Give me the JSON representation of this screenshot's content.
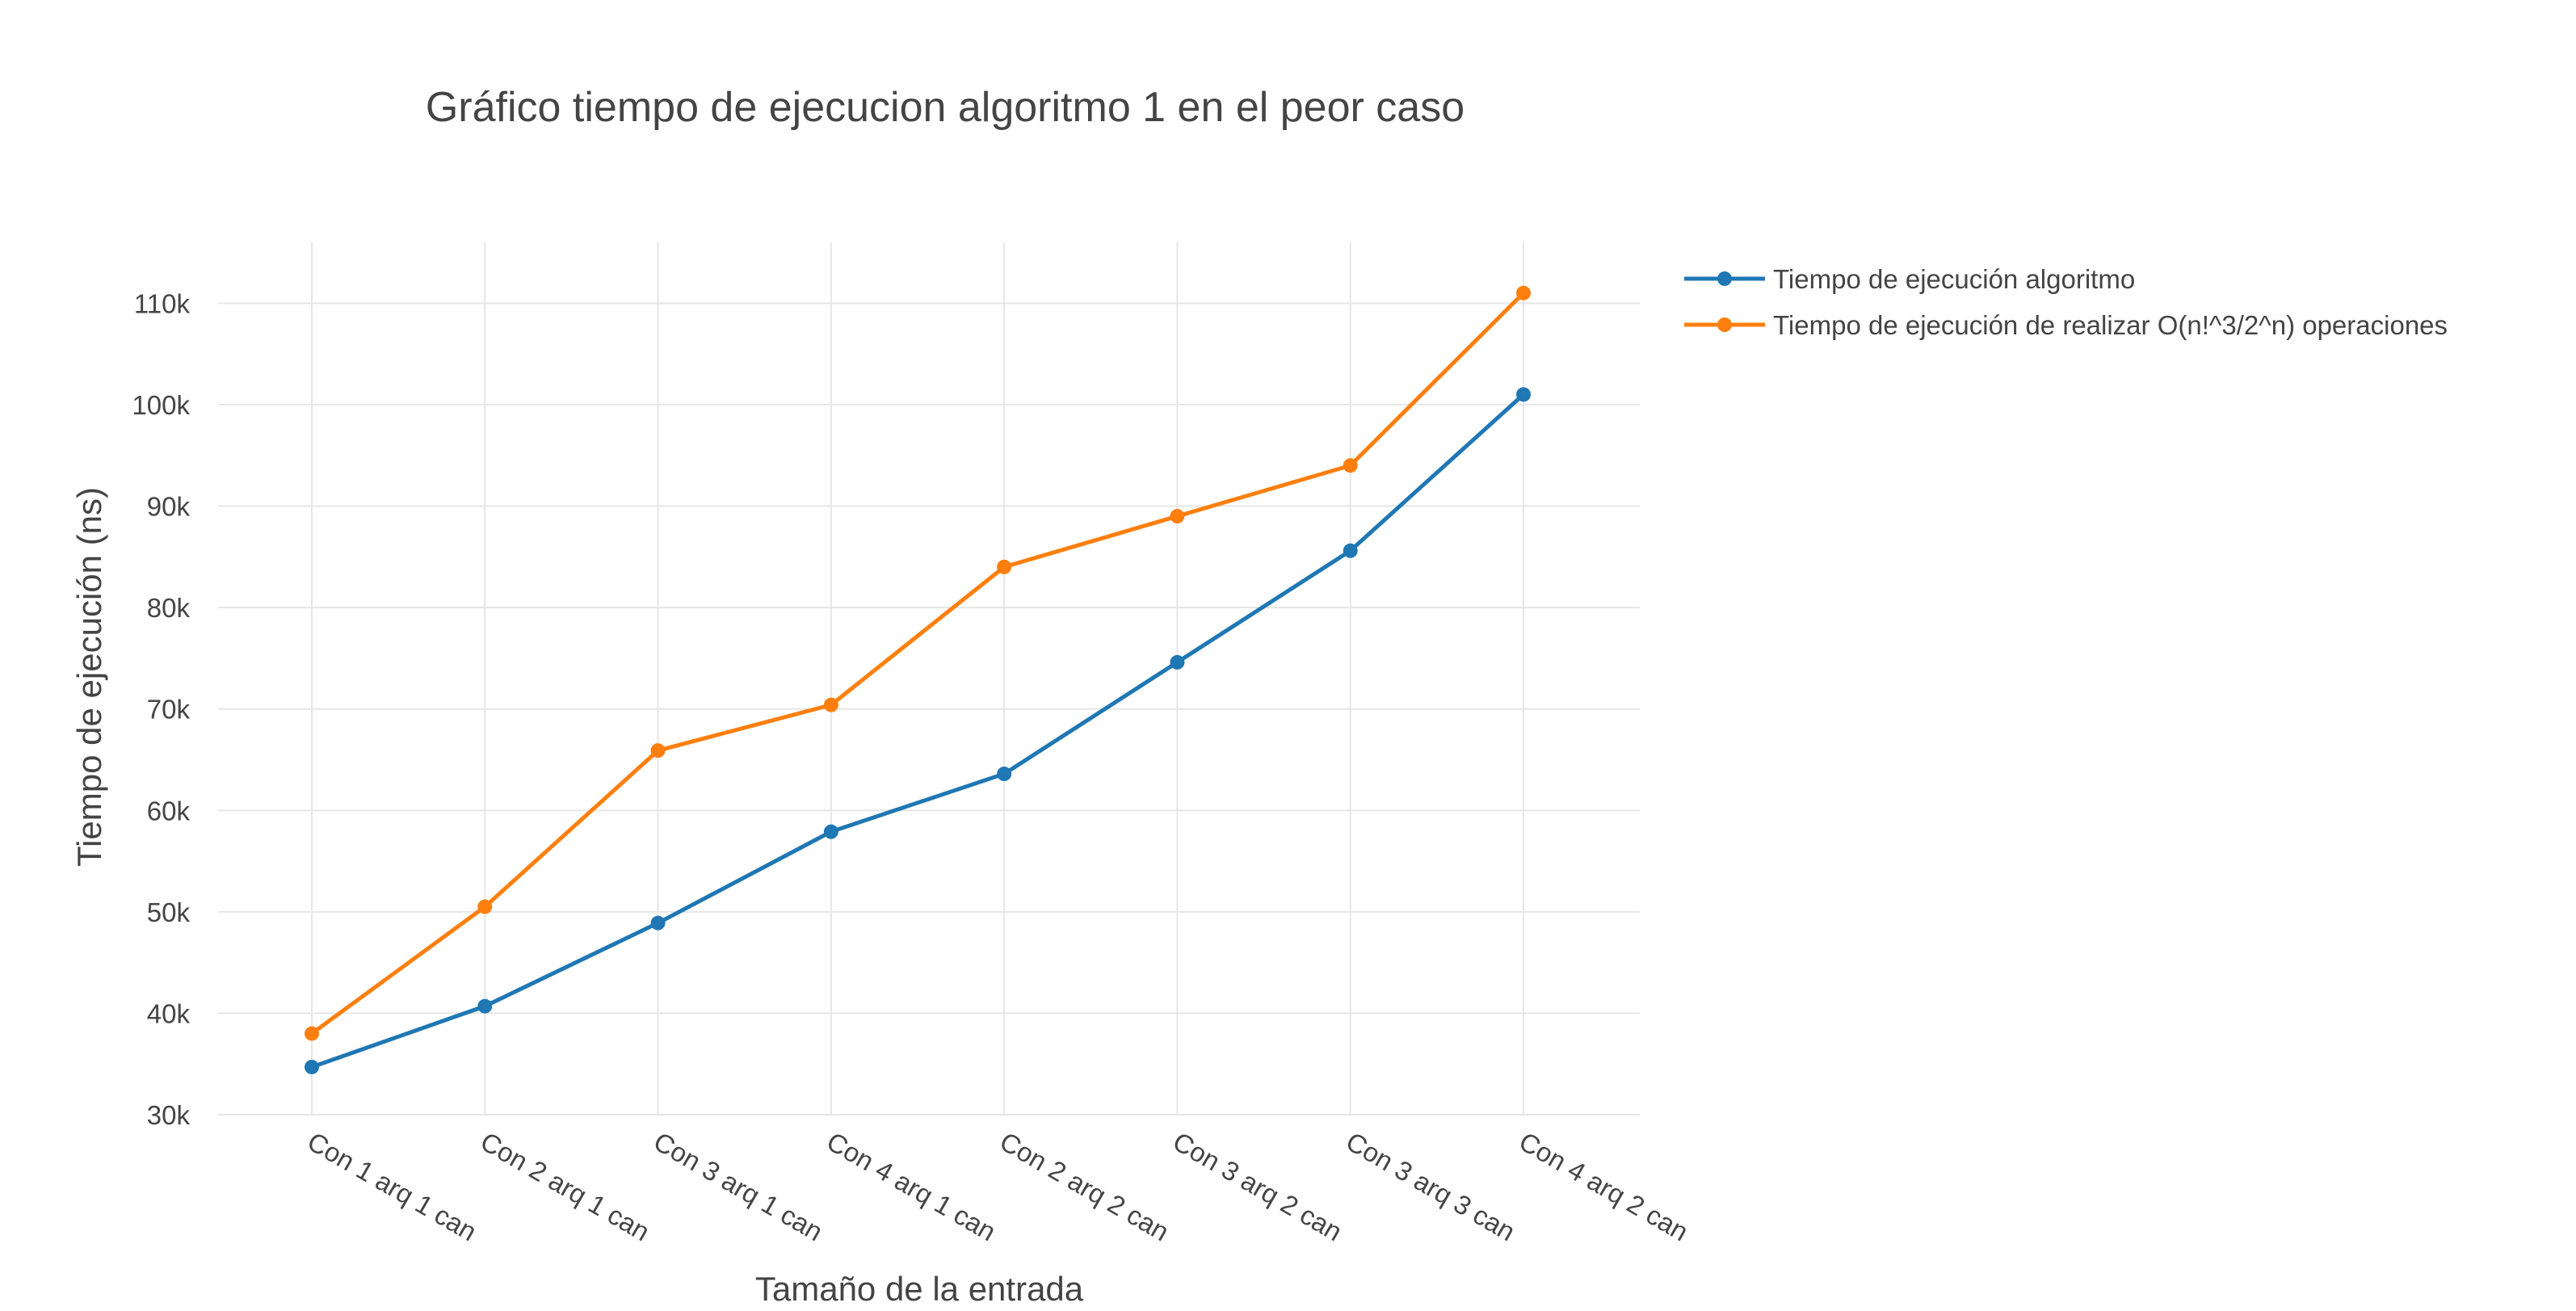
{
  "chart_data": {
    "type": "line",
    "title": "Gráfico tiempo de ejecucion algoritmo 1 en el peor caso",
    "xlabel": "Tamaño de la entrada",
    "ylabel": "Tiempo de ejecución (ns)",
    "categories": [
      "Con 1 arq 1 can",
      "Con 2 arq 1 can",
      "Con 3 arq 1 can",
      "Con 4 arq 1 can",
      "Con 2 arq 2 can",
      "Con 3 arq 2 can",
      "Con 3 arq 3 can",
      "Con 4 arq 2 can"
    ],
    "ylim": [
      30000,
      116000
    ],
    "yticks": [
      30000,
      40000,
      50000,
      60000,
      70000,
      80000,
      90000,
      100000,
      110000
    ],
    "ytick_labels": [
      "30k",
      "40k",
      "50k",
      "60k",
      "70k",
      "80k",
      "90k",
      "100k",
      "110k"
    ],
    "grid": true,
    "legend_position": "top-right",
    "series": [
      {
        "name": "Tiempo de ejecución algoritmo",
        "color": "#1f77b4",
        "values": [
          34700,
          40700,
          48900,
          57900,
          63600,
          74600,
          85600,
          101000
        ]
      },
      {
        "name": "Tiempo de ejecución de realizar  O(n!^3/2^n) operaciones",
        "color": "#ff7f0e",
        "values": [
          38000,
          50500,
          65900,
          70400,
          84000,
          89000,
          94000,
          111000
        ]
      }
    ]
  }
}
